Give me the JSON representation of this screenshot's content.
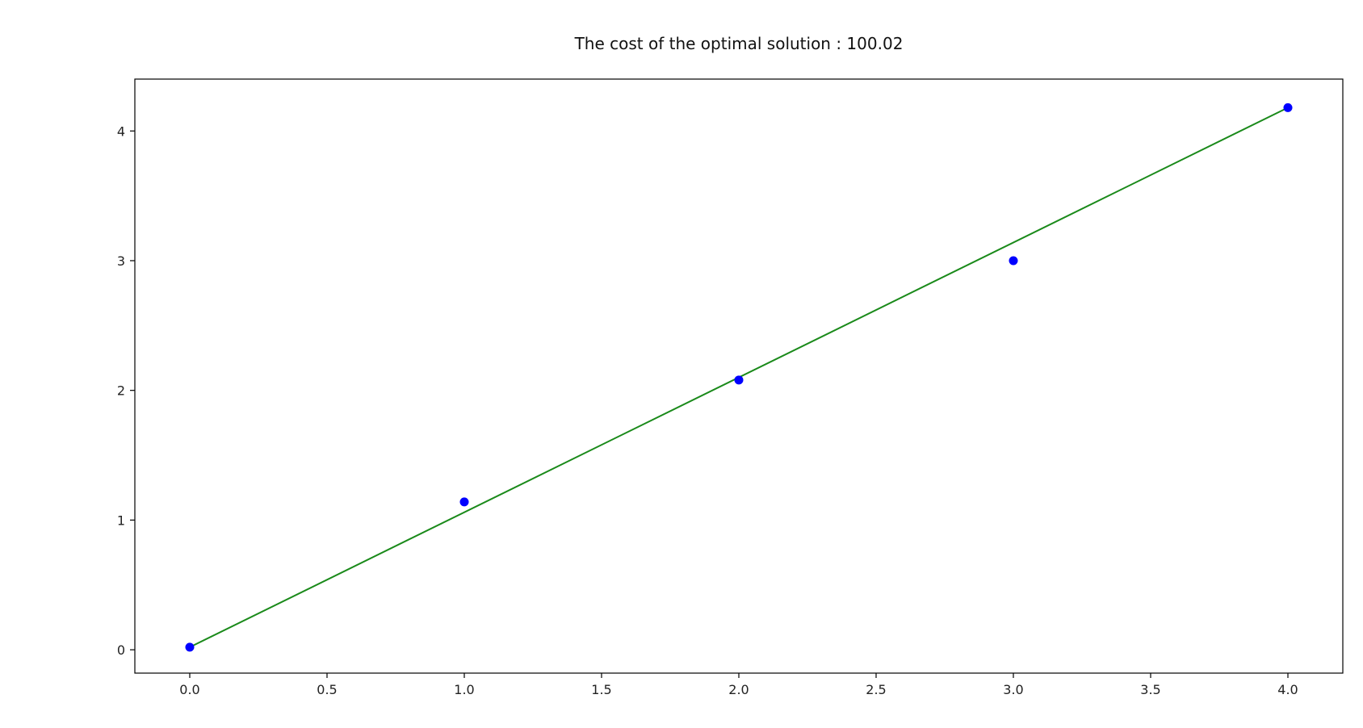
{
  "chart_data": {
    "type": "scatter",
    "title": "The cost of the optimal solution : 100.02",
    "xlabel": "",
    "ylabel": "",
    "xlim": [
      -0.2,
      4.2
    ],
    "ylim": [
      -0.18,
      4.4
    ],
    "grid": false,
    "x_ticks": [
      {
        "value": 0.0,
        "label": "0.0"
      },
      {
        "value": 0.5,
        "label": "0.5"
      },
      {
        "value": 1.0,
        "label": "1.0"
      },
      {
        "value": 1.5,
        "label": "1.5"
      },
      {
        "value": 2.0,
        "label": "2.0"
      },
      {
        "value": 2.5,
        "label": "2.5"
      },
      {
        "value": 3.0,
        "label": "3.0"
      },
      {
        "value": 3.5,
        "label": "3.5"
      },
      {
        "value": 4.0,
        "label": "4.0"
      }
    ],
    "y_ticks": [
      {
        "value": 0,
        "label": "0"
      },
      {
        "value": 1,
        "label": "1"
      },
      {
        "value": 2,
        "label": "2"
      },
      {
        "value": 3,
        "label": "3"
      },
      {
        "value": 4,
        "label": "4"
      }
    ],
    "series": [
      {
        "kind": "scatter",
        "color": "#0000ff",
        "x": [
          0,
          1,
          2,
          3,
          4
        ],
        "y": [
          0.02,
          1.14,
          2.08,
          3.0,
          4.18
        ]
      },
      {
        "kind": "line",
        "color": "#1a8a1a",
        "x": [
          0,
          4
        ],
        "y": [
          0.02,
          4.18
        ]
      }
    ]
  }
}
